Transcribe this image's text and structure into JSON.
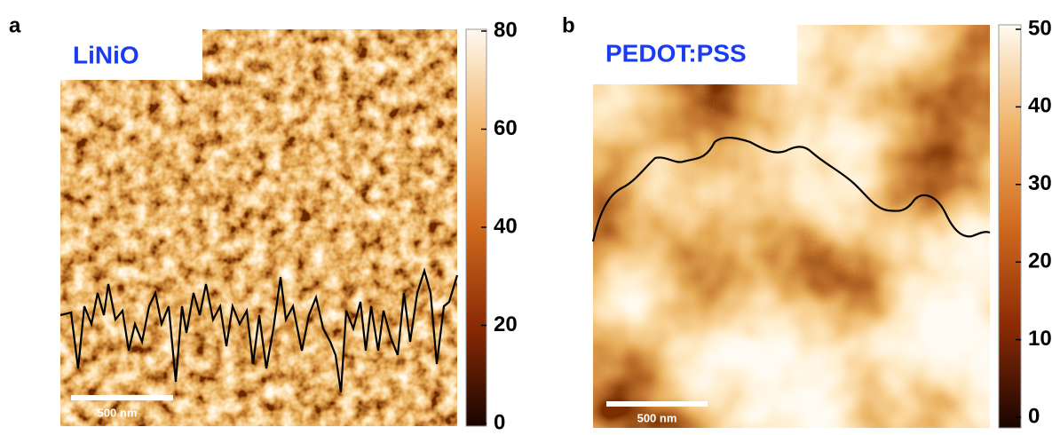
{
  "panels": [
    {
      "label": "a",
      "title": "LiNiO",
      "scalebar": "500 nm",
      "clim": [
        0,
        80
      ],
      "ticks": [
        0,
        20,
        40,
        60,
        80
      ]
    },
    {
      "label": "b",
      "title": "PEDOT:PSS",
      "scalebar": "500 nm",
      "clim": [
        0,
        50
      ],
      "ticks": [
        0,
        10,
        20,
        30,
        40,
        50
      ]
    }
  ]
}
